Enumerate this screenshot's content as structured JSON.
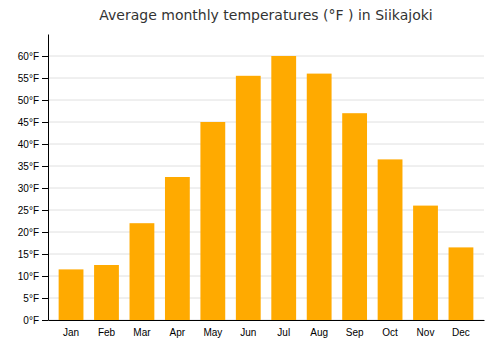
{
  "chart_data": {
    "type": "bar",
    "title": "Average monthly temperatures (°F ) in Siikajoki",
    "categories": [
      "Jan",
      "Feb",
      "Mar",
      "Apr",
      "May",
      "Jun",
      "Jul",
      "Aug",
      "Sep",
      "Oct",
      "Nov",
      "Dec"
    ],
    "values": [
      11.5,
      12.5,
      22.0,
      32.5,
      45.0,
      55.5,
      60.0,
      56.0,
      47.0,
      36.5,
      26.0,
      16.5
    ],
    "color": "#FFAA00",
    "ylim": [
      0,
      65
    ],
    "yticks": [
      {
        "value": 0,
        "label": "0°F"
      },
      {
        "value": 5,
        "label": "5°F"
      },
      {
        "value": 10,
        "label": "10°F"
      },
      {
        "value": 15,
        "label": "15°F"
      },
      {
        "value": 20,
        "label": "20°F"
      },
      {
        "value": 25,
        "label": "25°F"
      },
      {
        "value": 30,
        "label": "30°F"
      },
      {
        "value": 35,
        "label": "35°F"
      },
      {
        "value": 40,
        "label": "40°F"
      },
      {
        "value": 45,
        "label": "45°F"
      },
      {
        "value": 50,
        "label": "50°F"
      },
      {
        "value": 55,
        "label": "55°F"
      },
      {
        "value": 60,
        "label": "60°F"
      }
    ],
    "grid": true
  }
}
